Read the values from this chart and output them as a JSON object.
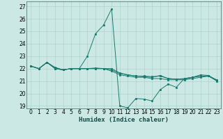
{
  "xlabel": "Humidex (Indice chaleur)",
  "bg_color": "#cce8e4",
  "grid_color": "#aad4cc",
  "line_color": "#1a7a6e",
  "xlim": [
    -0.5,
    23.5
  ],
  "ylim": [
    18.8,
    27.4
  ],
  "yticks": [
    19,
    20,
    21,
    22,
    23,
    24,
    25,
    26,
    27
  ],
  "xticks": [
    0,
    1,
    2,
    3,
    4,
    5,
    6,
    7,
    8,
    9,
    10,
    11,
    12,
    13,
    14,
    15,
    16,
    17,
    18,
    19,
    20,
    21,
    22,
    23
  ],
  "series": [
    {
      "x": [
        0,
        1,
        2,
        3,
        4,
        5,
        6,
        7,
        8,
        9,
        10,
        11,
        12,
        13,
        14,
        15,
        16,
        17,
        18,
        19,
        20,
        21,
        22,
        23
      ],
      "y": [
        22.2,
        22.0,
        22.5,
        22.0,
        21.9,
        22.0,
        22.0,
        22.0,
        22.0,
        22.0,
        21.8,
        21.5,
        21.4,
        21.3,
        21.3,
        21.2,
        21.2,
        21.1,
        21.1,
        21.1,
        21.2,
        21.3,
        21.4,
        21.0
      ]
    },
    {
      "x": [
        0,
        1,
        2,
        3,
        4,
        5,
        6,
        7,
        8,
        9,
        10,
        11,
        12,
        13,
        14,
        15,
        16,
        17,
        18,
        19,
        20,
        21,
        22,
        23
      ],
      "y": [
        22.2,
        22.0,
        22.5,
        22.1,
        21.9,
        22.0,
        22.0,
        23.0,
        24.8,
        25.5,
        26.8,
        19.0,
        18.85,
        19.6,
        19.55,
        19.4,
        20.3,
        20.75,
        20.5,
        21.2,
        21.3,
        21.5,
        21.45,
        21.05
      ]
    },
    {
      "x": [
        0,
        1,
        2,
        3,
        4,
        5,
        6,
        7,
        8,
        9,
        10,
        11,
        12,
        13,
        14,
        15,
        16,
        17,
        18,
        19,
        20,
        21,
        22,
        23
      ],
      "y": [
        22.2,
        22.0,
        22.5,
        22.0,
        21.9,
        22.0,
        22.0,
        22.0,
        22.0,
        22.0,
        21.9,
        21.6,
        21.5,
        21.4,
        21.35,
        21.3,
        21.45,
        21.2,
        21.15,
        21.15,
        21.3,
        21.4,
        21.4,
        21.05
      ]
    },
    {
      "x": [
        0,
        1,
        2,
        3,
        4,
        5,
        6,
        7,
        8,
        9,
        10,
        11,
        12,
        13,
        14,
        15,
        16,
        17,
        18,
        19,
        20,
        21,
        22,
        23
      ],
      "y": [
        22.2,
        22.0,
        22.5,
        22.05,
        21.9,
        22.0,
        22.0,
        22.0,
        22.05,
        22.0,
        22.0,
        21.65,
        21.5,
        21.4,
        21.4,
        21.35,
        21.4,
        21.2,
        21.15,
        21.2,
        21.3,
        21.4,
        21.4,
        21.1
      ]
    }
  ]
}
